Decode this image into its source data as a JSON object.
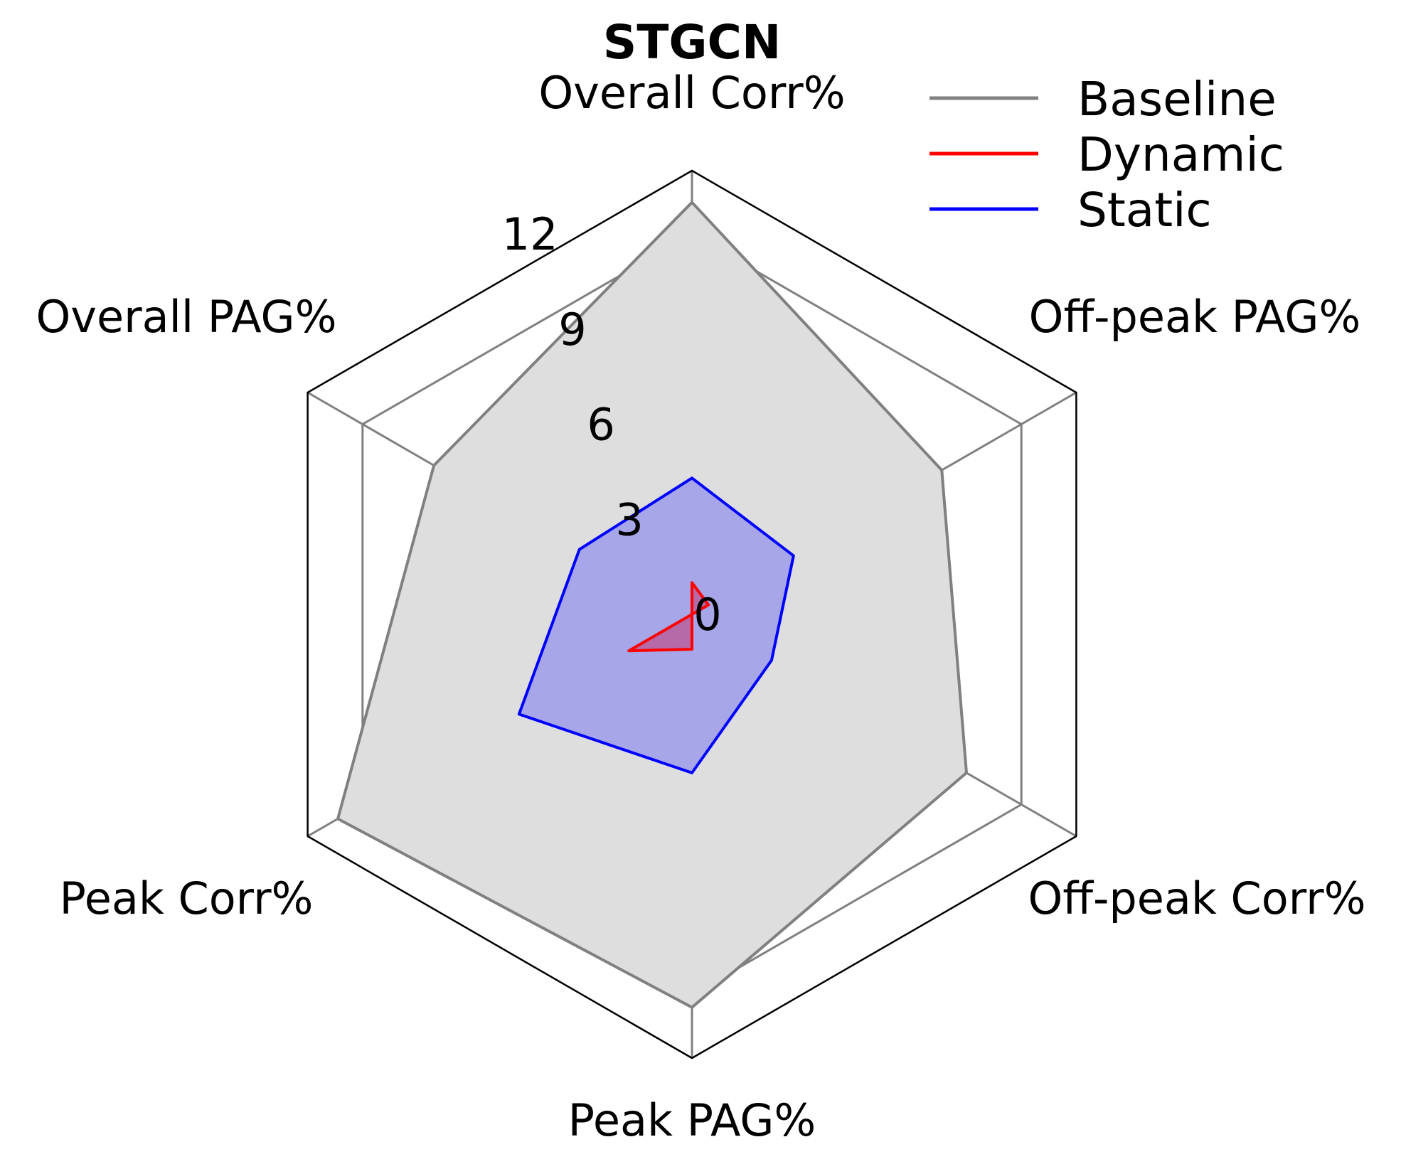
{
  "chart_data": {
    "type": "radar",
    "title": "STGCN",
    "axes": [
      "Overall Corr%",
      "Off-peak PAG%",
      "Off-peak Corr%",
      "Peak PAG%",
      "Peak Corr%",
      "Overall PAG%"
    ],
    "r_ticks": [
      0,
      3,
      6,
      9,
      12
    ],
    "r_range": [
      0,
      14
    ],
    "grid": true,
    "legend_position": "top-right",
    "series": [
      {
        "name": "Baseline",
        "color": "#808080",
        "fill": "#dedede",
        "values": [
          13.0,
          9.1,
          10.0,
          12.4,
          12.9,
          9.4
        ]
      },
      {
        "name": "Static",
        "color": "#0000ff",
        "fill": "#a6a6e8",
        "values": [
          4.3,
          3.7,
          2.9,
          5.0,
          6.3,
          4.1
        ]
      },
      {
        "name": "Dynamic",
        "color": "#ff0000",
        "fill": "#b66aa8",
        "values": [
          1.0,
          0.6,
          0.0,
          1.1,
          2.3,
          0.0
        ]
      }
    ]
  }
}
